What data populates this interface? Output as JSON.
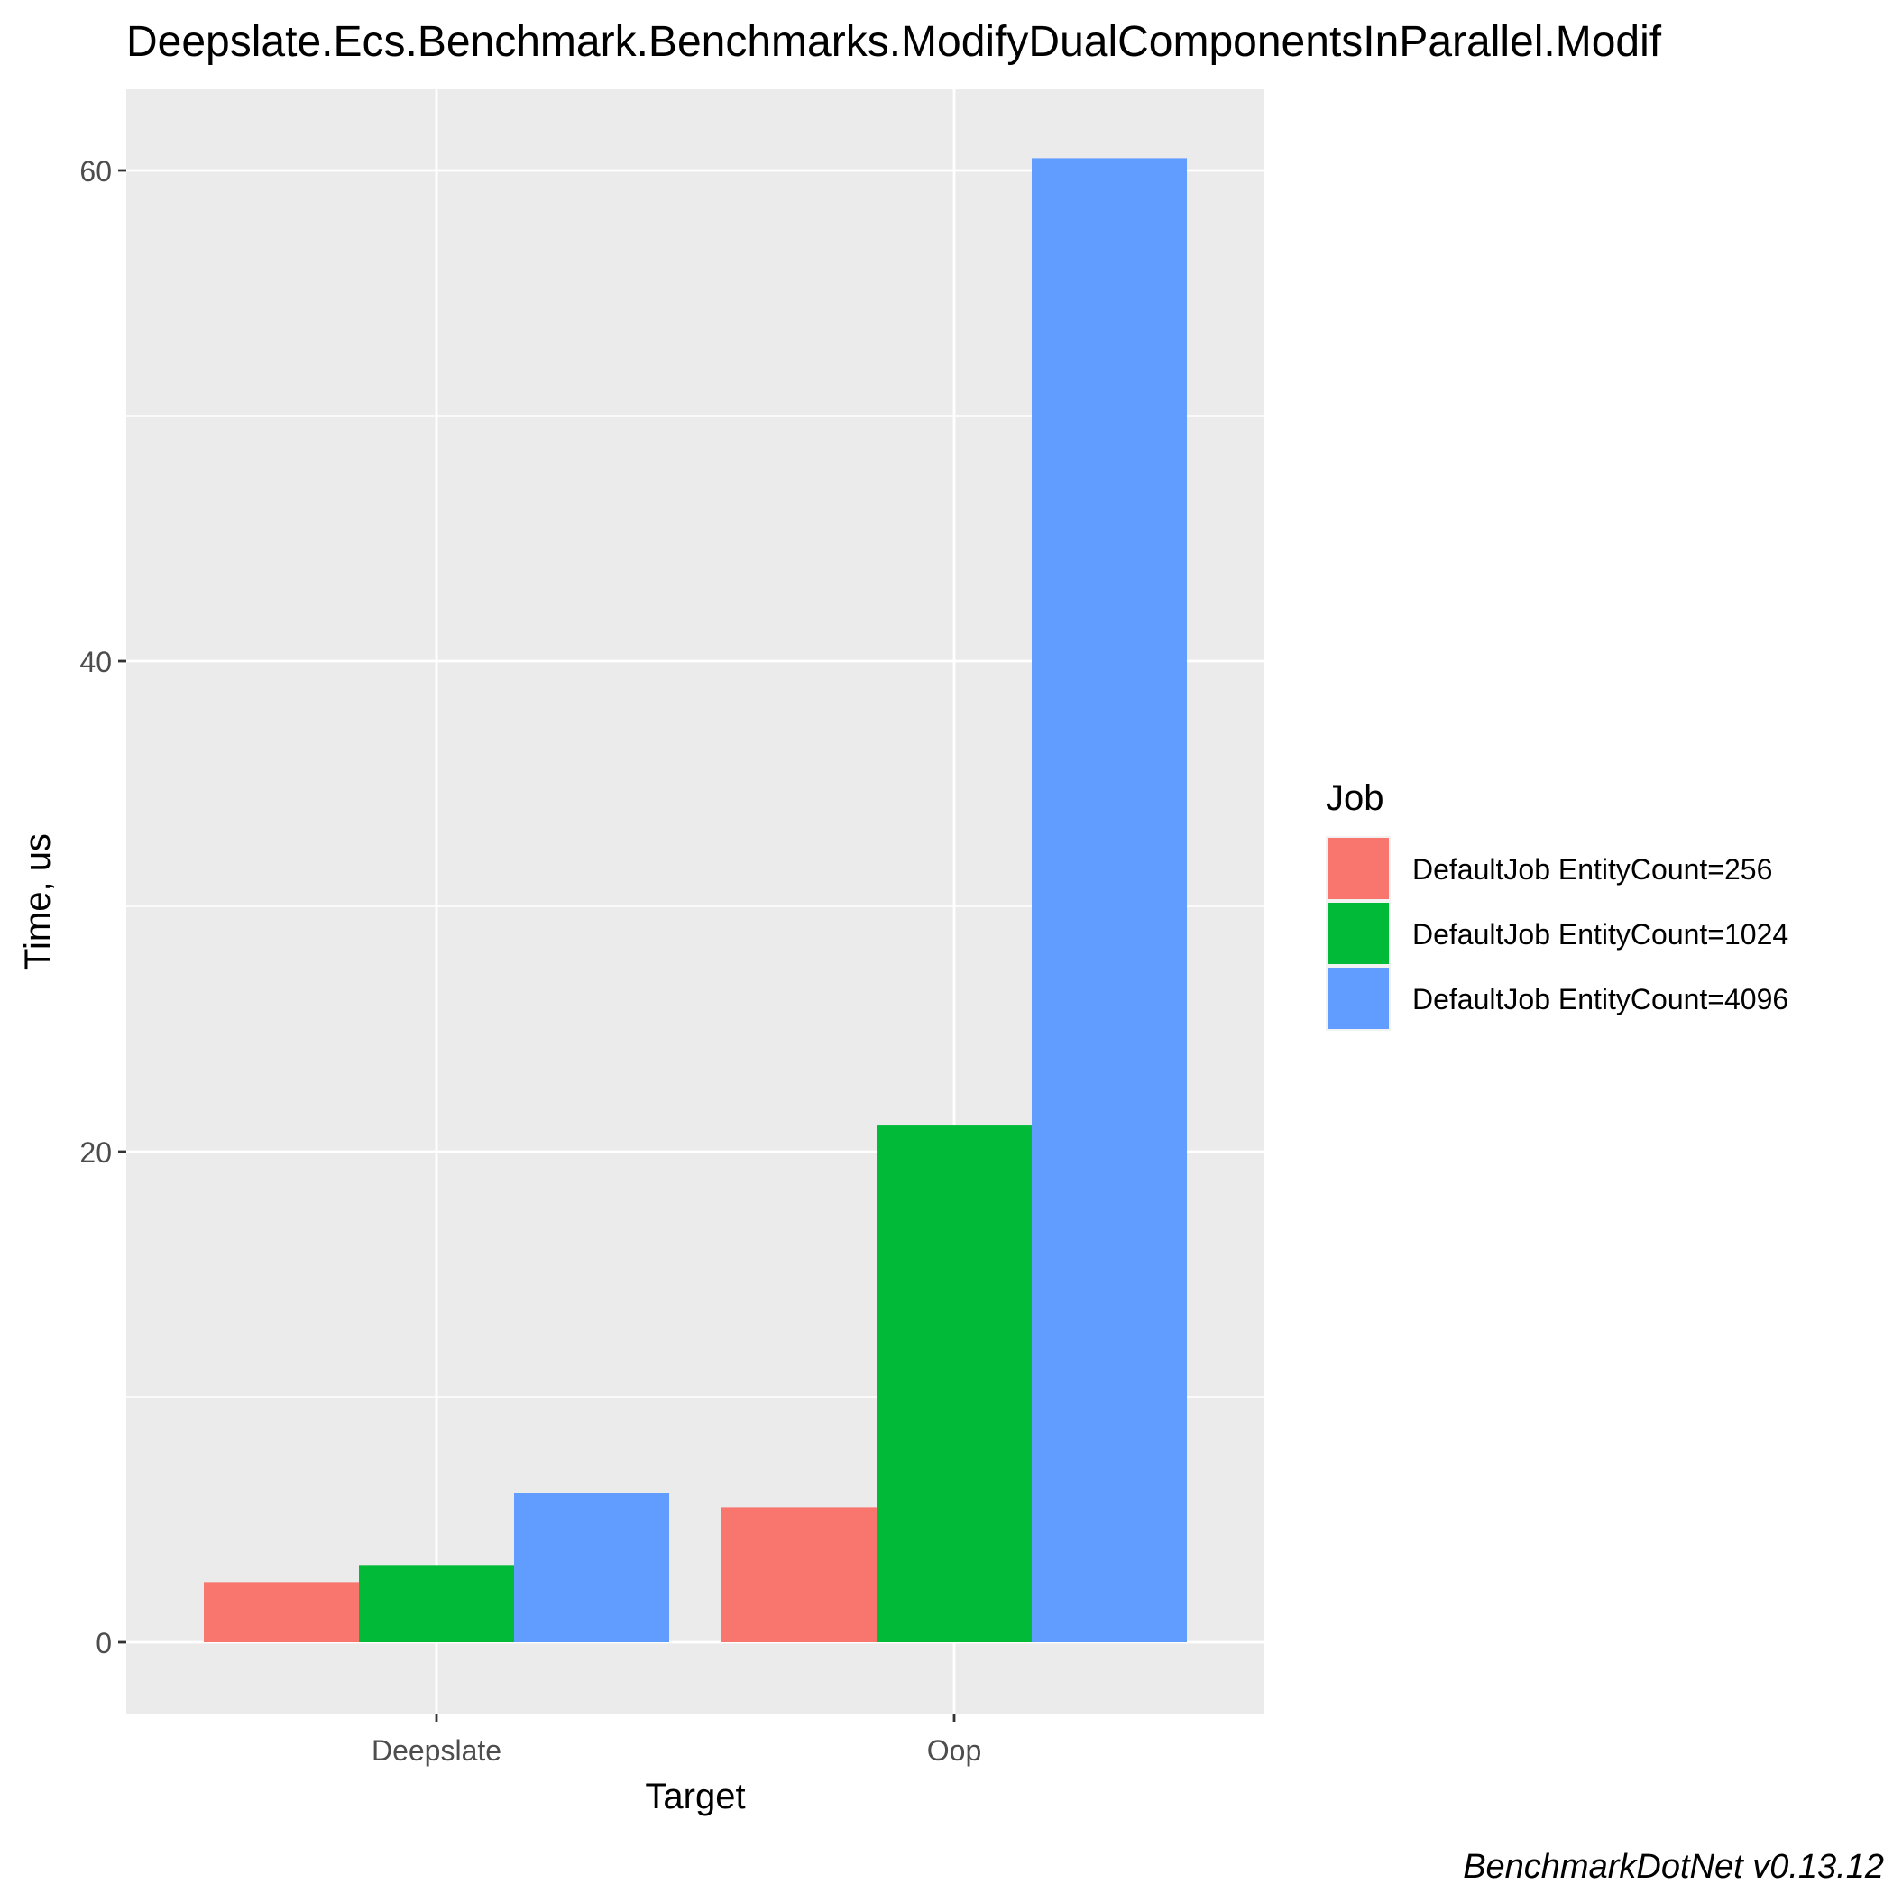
{
  "chart_data": {
    "type": "bar",
    "title": "Deepslate.Ecs.Benchmark.Benchmarks.ModifyDualComponentsInParallel.Modif",
    "xlabel": "Target",
    "ylabel": "Time, us",
    "categories": [
      "Deepslate",
      "Oop"
    ],
    "ylim": [
      -3,
      63
    ],
    "yticks": [
      0,
      20,
      40,
      60
    ],
    "ytick_labels": [
      "0",
      "20",
      "40",
      "60"
    ],
    "grid": true,
    "legend": {
      "title": "Job",
      "position": "right"
    },
    "series": [
      {
        "name": "DefaultJob EntityCount=256",
        "color": "#F8766D",
        "values": [
          2.45,
          5.5
        ]
      },
      {
        "name": "DefaultJob EntityCount=1024",
        "color": "#00BA38",
        "values": [
          3.15,
          21.1
        ]
      },
      {
        "name": "DefaultJob EntityCount=4096",
        "color": "#619CFF",
        "values": [
          6.1,
          60.5
        ]
      }
    ]
  },
  "caption": "BenchmarkDotNet v0.13.12"
}
